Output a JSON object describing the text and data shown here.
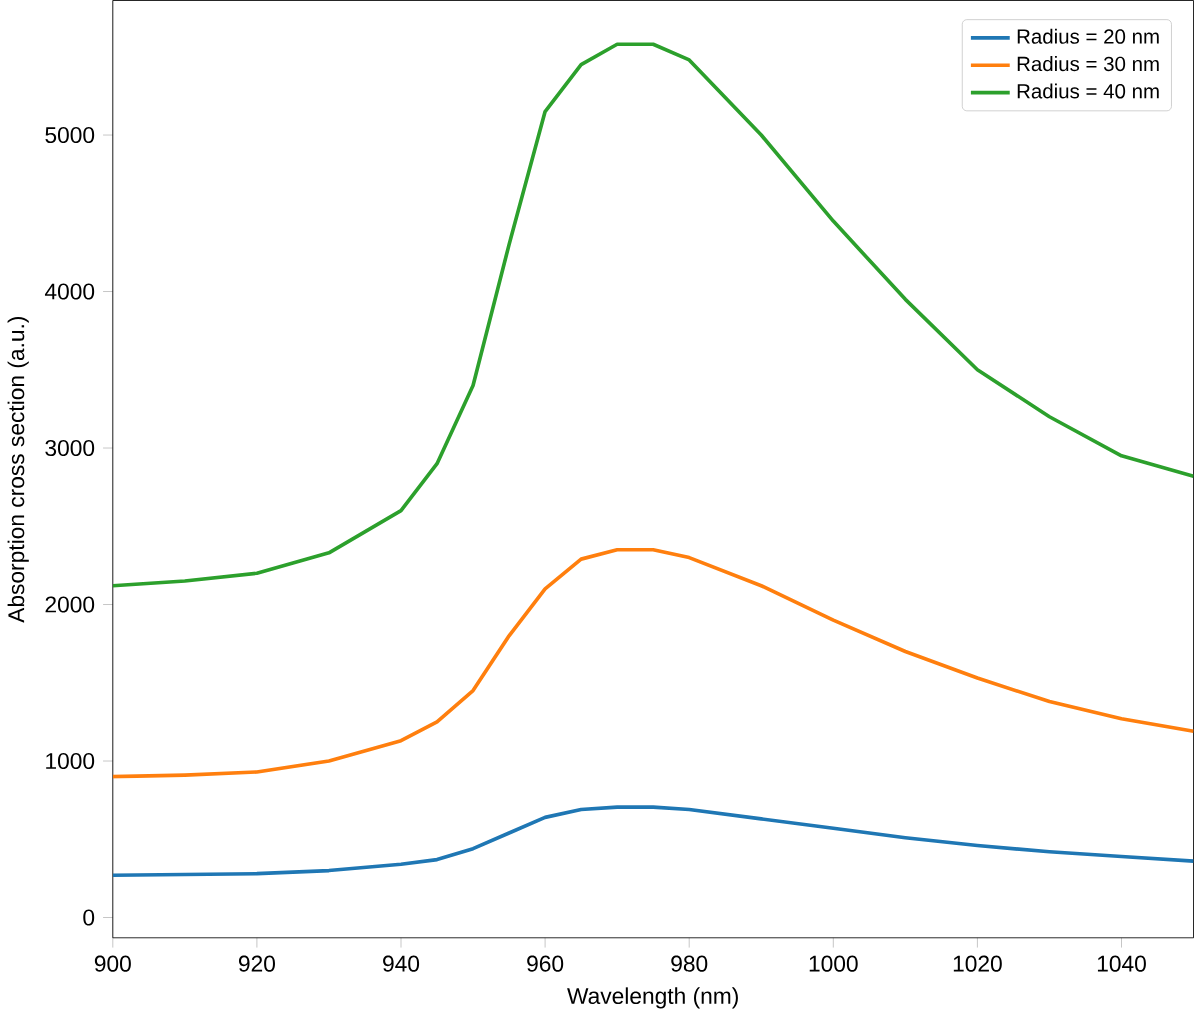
{
  "chart_data": {
    "type": "line",
    "xlabel": "Wavelength (nm)",
    "ylabel": "Absorption cross section (a.u.)",
    "xlim": [
      900,
      1050
    ],
    "ylim": [
      -130,
      5860
    ],
    "xticks": [
      900,
      920,
      940,
      960,
      980,
      1000,
      1020,
      1040
    ],
    "yticks": [
      0,
      1000,
      2000,
      3000,
      4000,
      5000
    ],
    "grid": false,
    "legend": "top right",
    "line_style": "solid",
    "marker": "none",
    "x": [
      900,
      910,
      920,
      930,
      940,
      945,
      950,
      955,
      960,
      965,
      970,
      975,
      980,
      990,
      1000,
      1010,
      1020,
      1030,
      1040,
      1050
    ],
    "series": [
      {
        "name": "Radius = 20 nm",
        "color": "#1f77b4",
        "values": [
          270,
          275,
          280,
          300,
          340,
          370,
          440,
          540,
          640,
          690,
          705,
          705,
          690,
          630,
          570,
          510,
          460,
          420,
          390,
          360
        ]
      },
      {
        "name": "Radius = 30 nm",
        "color": "#ff7f0e",
        "values": [
          900,
          910,
          930,
          1000,
          1130,
          1250,
          1450,
          1800,
          2100,
          2290,
          2350,
          2350,
          2300,
          2120,
          1900,
          1700,
          1530,
          1380,
          1270,
          1190
        ]
      },
      {
        "name": "Radius = 40 nm",
        "color": "#2ca02c",
        "values": [
          2120,
          2150,
          2200,
          2330,
          2600,
          2900,
          3400,
          4300,
          5150,
          5450,
          5580,
          5580,
          5480,
          5000,
          4450,
          3950,
          3500,
          3200,
          2950,
          2820
        ]
      }
    ]
  }
}
